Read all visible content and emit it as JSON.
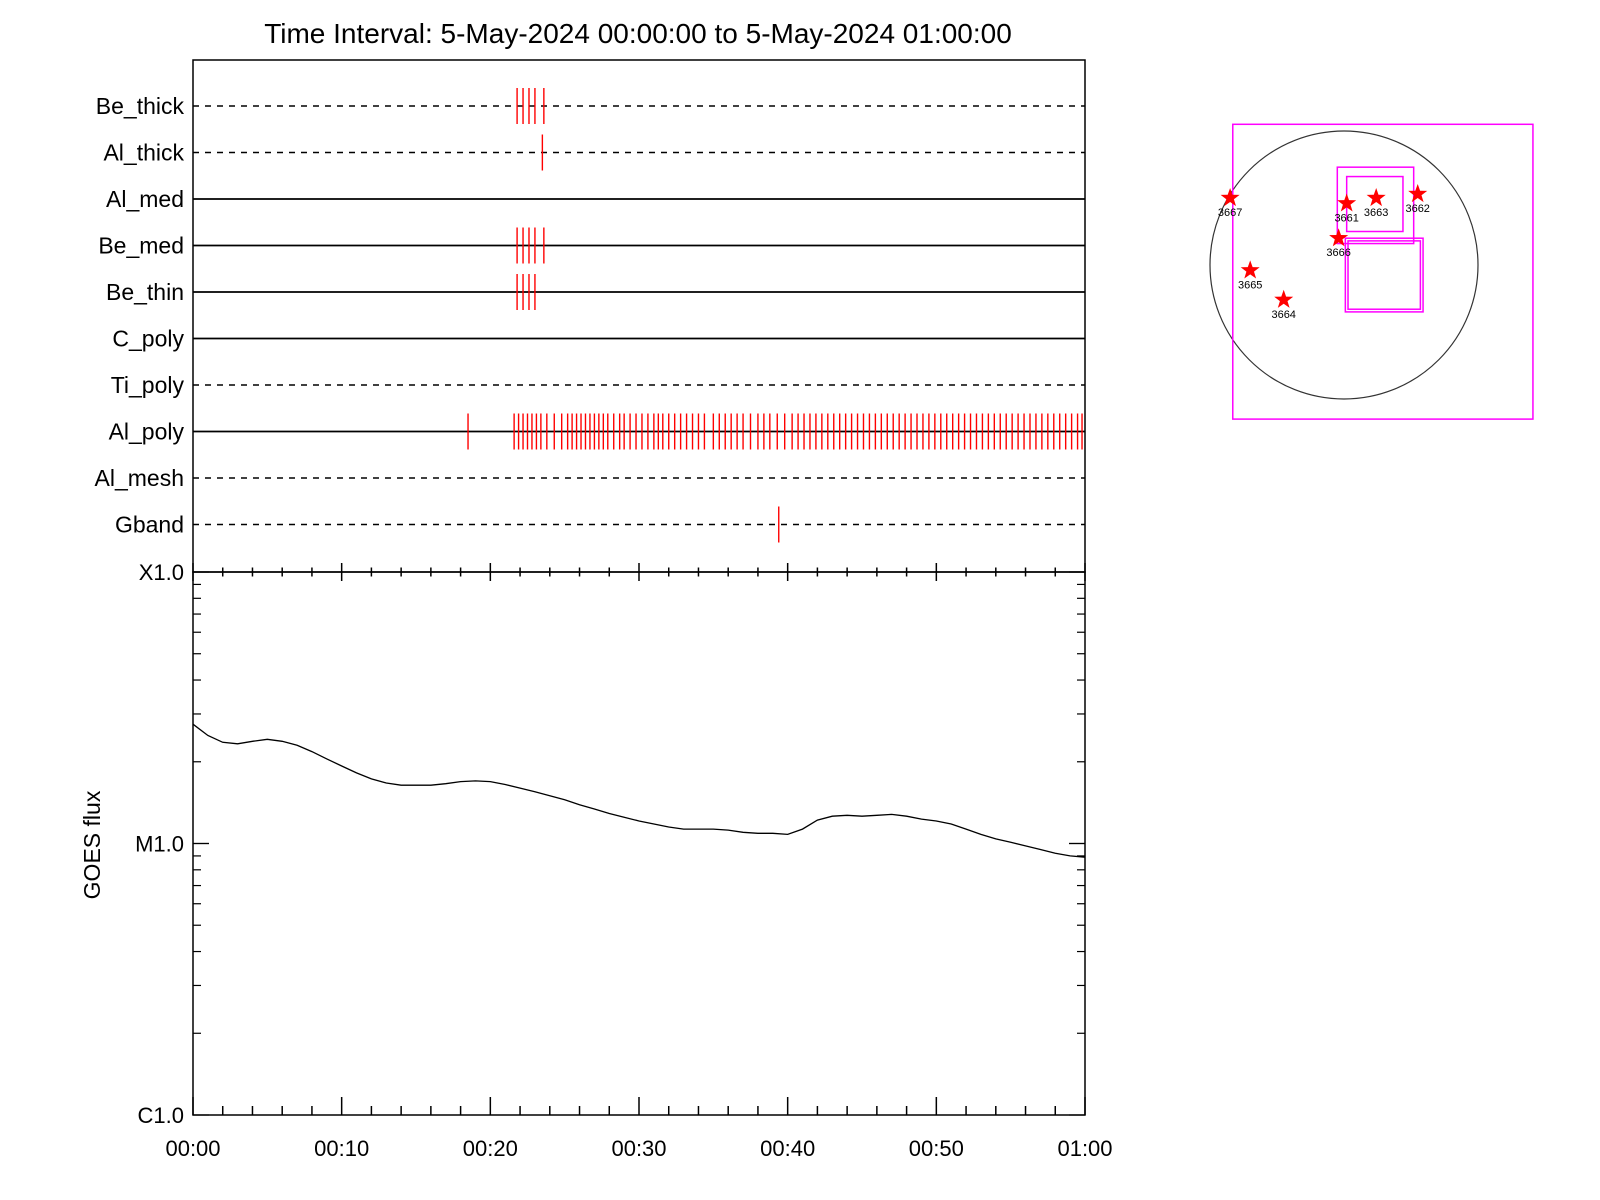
{
  "title": "Time Interval:  5-May-2024 00:00:00 to  5-May-2024 01:00:00",
  "colors": {
    "event": "#ff0000",
    "box": "#ff00ff",
    "star": "#ff0000",
    "axis": "#000000"
  },
  "chart_data": [
    {
      "type": "timeline",
      "x_unit": "minutes",
      "xlim": [
        0,
        60
      ],
      "channels": [
        {
          "name": "Be_thick",
          "line": "dashed",
          "events": [
            21.8,
            22.2,
            22.6,
            23.0,
            23.6
          ]
        },
        {
          "name": "Al_thick",
          "line": "dashed",
          "events": [
            23.5
          ]
        },
        {
          "name": "Al_med",
          "line": "solid",
          "events": []
        },
        {
          "name": "Be_med",
          "line": "solid",
          "events": [
            21.8,
            22.2,
            22.6,
            23.0,
            23.6
          ]
        },
        {
          "name": "Be_thin",
          "line": "solid",
          "events": [
            21.8,
            22.2,
            22.6,
            23.0
          ]
        },
        {
          "name": "C_poly",
          "line": "solid",
          "events": []
        },
        {
          "name": "Ti_poly",
          "line": "dashed",
          "events": []
        },
        {
          "name": "Al_poly",
          "line": "solid",
          "events": [
            18.5,
            21.6,
            21.9,
            22.2,
            22.5,
            22.8,
            23.1,
            23.4,
            23.8,
            24.3,
            24.8,
            25.2,
            25.5,
            25.8,
            26.1,
            26.4,
            26.7,
            27.0,
            27.3,
            27.6,
            27.9,
            28.3,
            28.7,
            29.0,
            29.4,
            29.8,
            30.2,
            30.6,
            31.0,
            31.3,
            31.6,
            32.0,
            32.4,
            32.8,
            33.2,
            33.6,
            34.0,
            34.4,
            35.0,
            35.4,
            35.8,
            36.2,
            36.6,
            37.0,
            37.5,
            38.0,
            38.4,
            38.8,
            39.3,
            39.8,
            40.3,
            40.7,
            41.1,
            41.5,
            41.9,
            42.3,
            42.7,
            43.1,
            43.5,
            43.9,
            44.3,
            44.7,
            45.1,
            45.5,
            45.9,
            46.3,
            46.7,
            47.1,
            47.5,
            47.9,
            48.3,
            48.7,
            49.1,
            49.5,
            49.9,
            50.3,
            50.7,
            51.1,
            51.5,
            51.9,
            52.3,
            52.7,
            53.1,
            53.5,
            53.9,
            54.3,
            54.7,
            55.1,
            55.5,
            55.9,
            56.3,
            56.7,
            57.1,
            57.5,
            57.9,
            58.3,
            58.7,
            59.1,
            59.5,
            59.8
          ]
        },
        {
          "name": "Al_mesh",
          "line": "dashed",
          "events": []
        },
        {
          "name": "Gband",
          "line": "dashed",
          "events": [
            39.4
          ]
        }
      ]
    },
    {
      "type": "line",
      "ylabel": "GOES flux",
      "yscale": "log",
      "ylim": [
        1e-06,
        0.0001
      ],
      "y_tick_labels": [
        {
          "value": 0.0001,
          "label": "X1.0"
        },
        {
          "value": 1e-05,
          "label": "M1.0"
        },
        {
          "value": 1e-06,
          "label": "C1.0"
        }
      ],
      "x_tick_labels": [
        "00:00",
        "00:10",
        "00:20",
        "00:30",
        "00:40",
        "00:50",
        "01:00"
      ],
      "xlim": [
        0,
        60
      ],
      "series": [
        {
          "x": [
            0,
            1,
            2,
            3,
            4,
            5,
            6,
            7,
            8,
            9,
            10,
            11,
            12,
            13,
            14,
            15,
            16,
            17,
            18,
            19,
            20,
            21,
            22,
            23,
            24,
            25,
            26,
            27,
            28,
            29,
            30,
            31,
            32,
            33,
            34,
            35,
            36,
            37,
            38,
            39,
            40,
            41,
            42,
            43,
            44,
            45,
            46,
            47,
            48,
            49,
            50,
            51,
            52,
            53,
            54,
            55,
            56,
            57,
            58,
            59,
            60
          ],
          "y": [
            2.75e-05,
            2.5e-05,
            2.36e-05,
            2.33e-05,
            2.38e-05,
            2.42e-05,
            2.38e-05,
            2.3e-05,
            2.18e-05,
            2.05e-05,
            1.93e-05,
            1.82e-05,
            1.73e-05,
            1.67e-05,
            1.64e-05,
            1.64e-05,
            1.64e-05,
            1.66e-05,
            1.69e-05,
            1.7e-05,
            1.69e-05,
            1.65e-05,
            1.6e-05,
            1.55e-05,
            1.5e-05,
            1.45e-05,
            1.39e-05,
            1.34e-05,
            1.29e-05,
            1.25e-05,
            1.21e-05,
            1.18e-05,
            1.15e-05,
            1.13e-05,
            1.13e-05,
            1.13e-05,
            1.12e-05,
            1.1e-05,
            1.09e-05,
            1.09e-05,
            1.08e-05,
            1.13e-05,
            1.22e-05,
            1.26e-05,
            1.27e-05,
            1.26e-05,
            1.27e-05,
            1.28e-05,
            1.26e-05,
            1.23e-05,
            1.21e-05,
            1.18e-05,
            1.13e-05,
            1.08e-05,
            1.04e-05,
            1.01e-05,
            9.8e-06,
            9.5e-06,
            9.2e-06,
            9e-06,
            8.9e-06
          ]
        }
      ]
    },
    {
      "type": "solar_map",
      "regions": [
        {
          "label": "3667",
          "x": -0.85,
          "y": 0.5
        },
        {
          "label": "3661",
          "x": 0.02,
          "y": 0.46
        },
        {
          "label": "3663",
          "x": 0.24,
          "y": 0.5
        },
        {
          "label": "3662",
          "x": 0.55,
          "y": 0.53
        },
        {
          "label": "3666",
          "x": -0.04,
          "y": 0.2
        },
        {
          "label": "3665",
          "x": -0.7,
          "y": -0.04
        },
        {
          "label": "3664",
          "x": -0.45,
          "y": -0.26
        }
      ],
      "boxes": [
        {
          "x0": -0.83,
          "y0": -1.15,
          "x1": 1.41,
          "y1": 1.05
        },
        {
          "x0": -0.05,
          "y0": 0.16,
          "x1": 0.52,
          "y1": 0.73
        },
        {
          "x0": 0.02,
          "y0": 0.25,
          "x1": 0.44,
          "y1": 0.66
        },
        {
          "x0": 0.01,
          "y0": -0.35,
          "x1": 0.59,
          "y1": 0.2
        },
        {
          "x0": 0.03,
          "y0": -0.33,
          "x1": 0.57,
          "y1": 0.18
        }
      ]
    }
  ]
}
